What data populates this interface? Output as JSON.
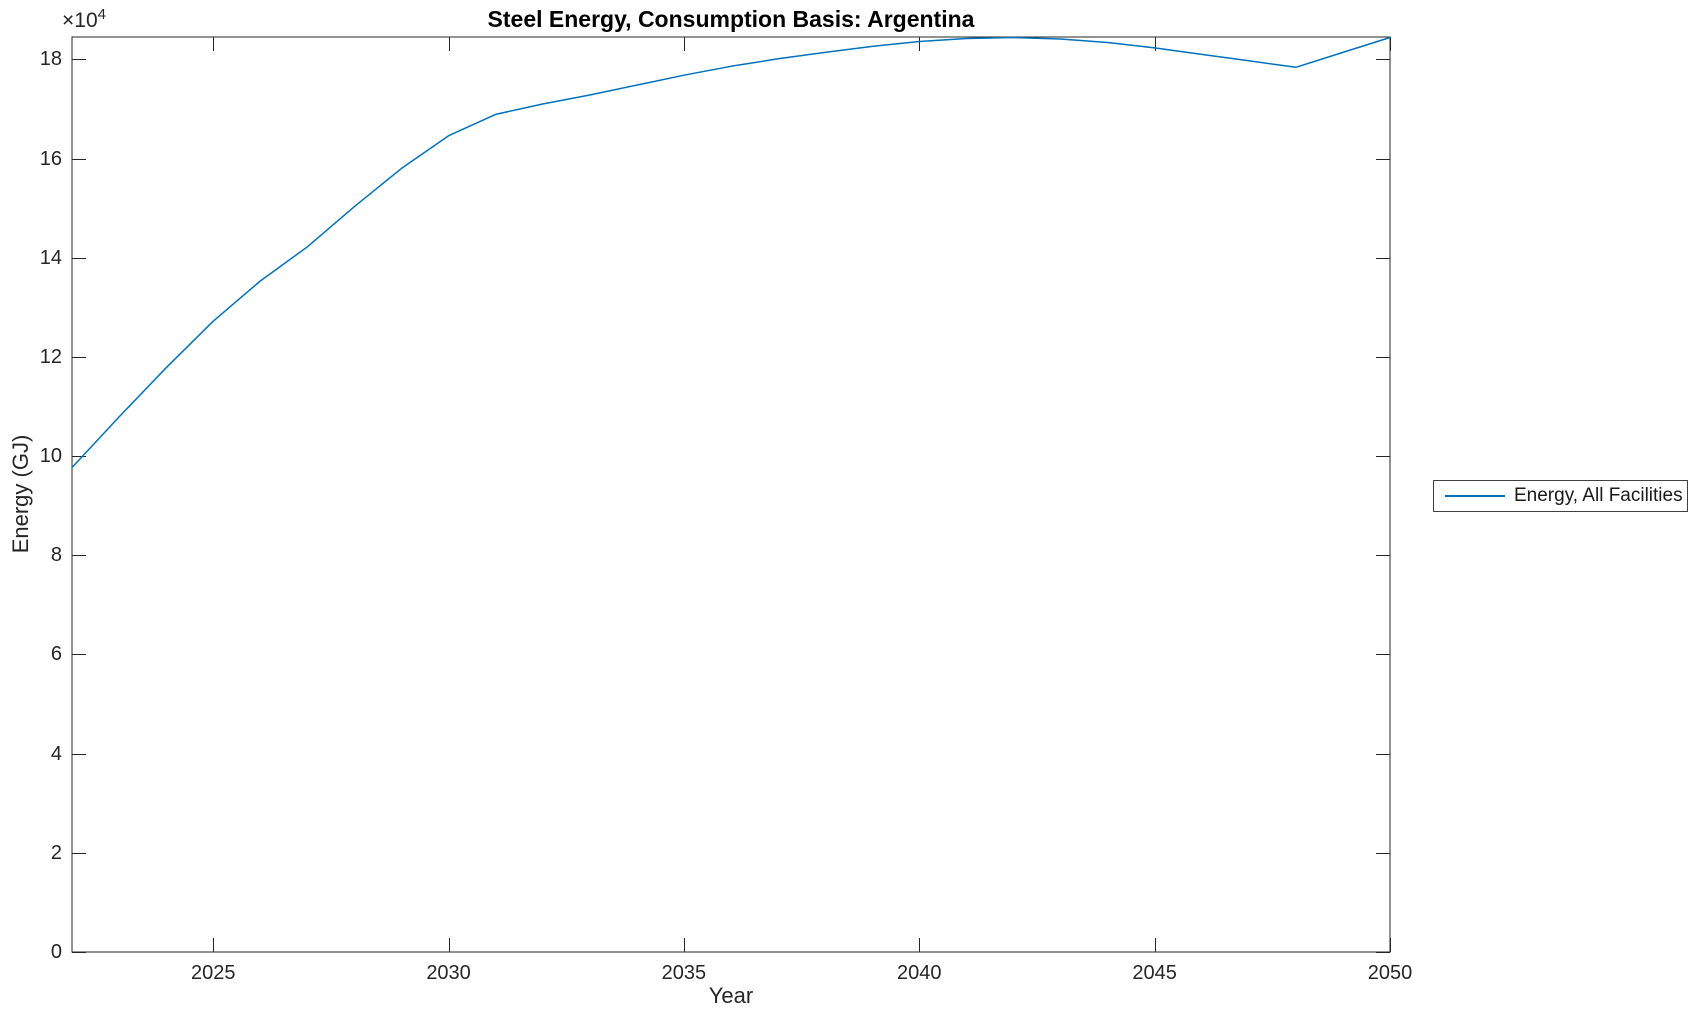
{
  "chart_data": {
    "type": "line",
    "title": "Steel Energy, Consumption Basis: Argentina",
    "xlabel": "Year",
    "ylabel": "Energy (GJ)",
    "y_axis_scale": {
      "base": "×10",
      "exponent": "4"
    },
    "x": [
      2022,
      2023,
      2024,
      2025,
      2026,
      2027,
      2028,
      2029,
      2030,
      2031,
      2032,
      2033,
      2034,
      2035,
      2036,
      2037,
      2038,
      2039,
      2040,
      2041,
      2042,
      2043,
      2044,
      2045,
      2046,
      2047,
      2048,
      2049,
      2050
    ],
    "series": [
      {
        "name": "Energy, All Facilities",
        "color": "#0072BD",
        "values": [
          97700,
          107900,
          117800,
          127200,
          135300,
          142200,
          150300,
          158000,
          164600,
          168900,
          171000,
          172800,
          174800,
          176800,
          178600,
          180100,
          181400,
          182600,
          183600,
          184200,
          184400,
          184100,
          183400,
          182300,
          181000,
          179700,
          178400,
          181400,
          184400
        ]
      }
    ],
    "xlim": [
      2022,
      2050
    ],
    "ylim": [
      0,
      184500
    ],
    "x_ticks": [
      2025,
      2030,
      2035,
      2040,
      2045,
      2050
    ],
    "x_tick_labels": [
      "2025",
      "2030",
      "2035",
      "2040",
      "2045",
      "2050"
    ],
    "y_ticks": [
      0,
      20000,
      40000,
      60000,
      80000,
      100000,
      120000,
      140000,
      160000,
      180000
    ],
    "y_tick_labels": [
      "0",
      "2",
      "4",
      "6",
      "8",
      "10",
      "12",
      "14",
      "16",
      "18"
    ],
    "grid": false,
    "legend": {
      "position": "right-outside",
      "entries": [
        "Energy, All Facilities"
      ]
    },
    "axis_color": "#262626"
  }
}
